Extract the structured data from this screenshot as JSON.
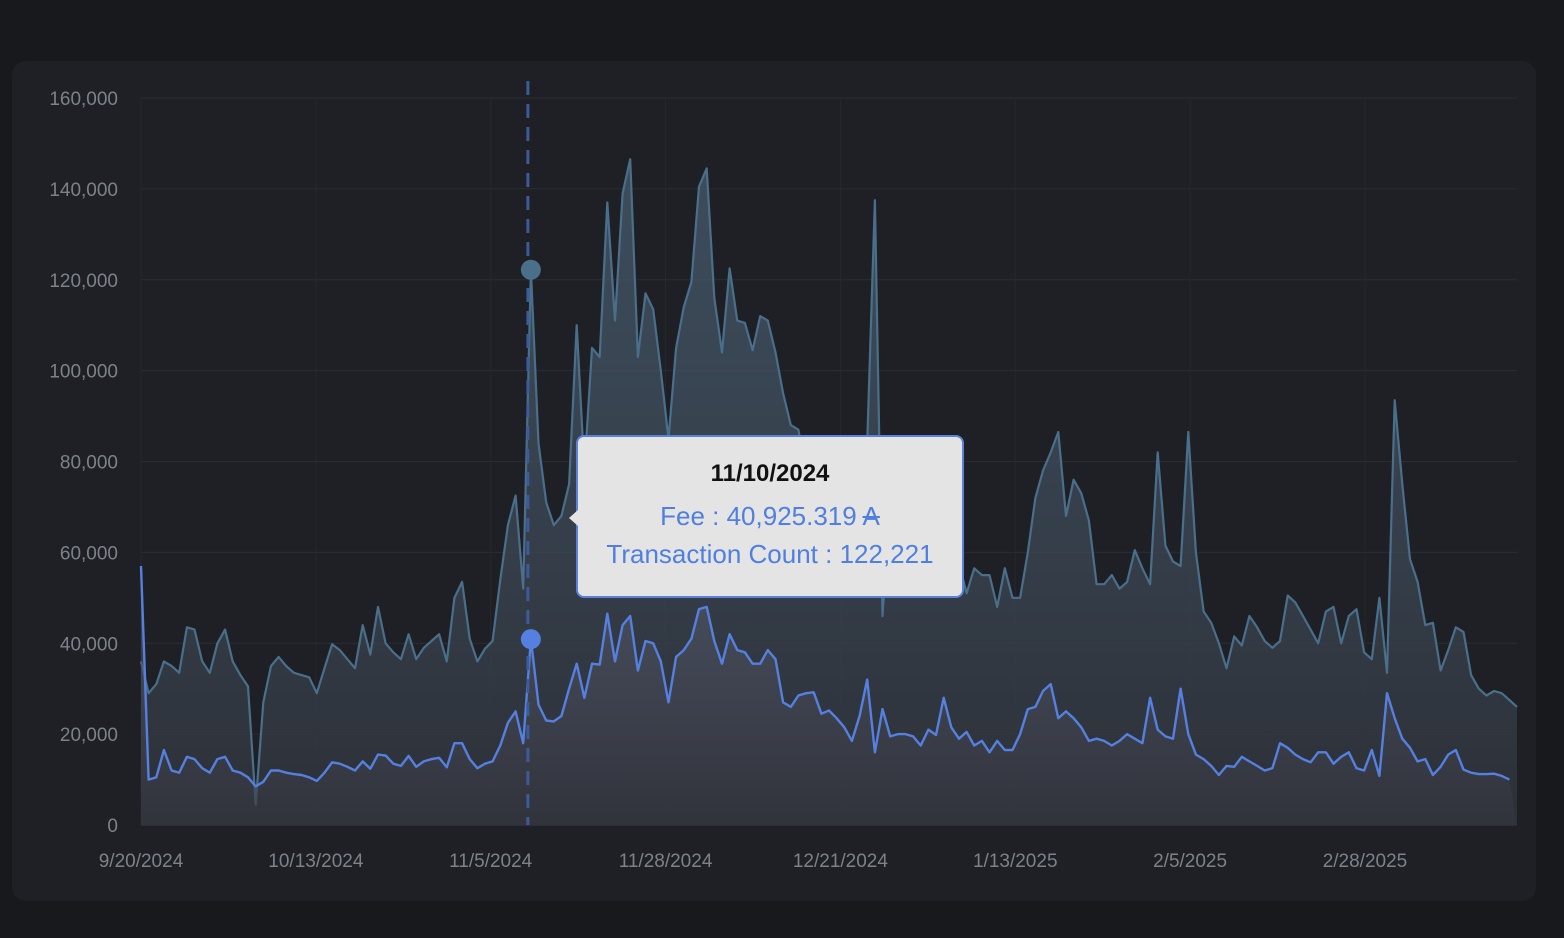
{
  "chart_data": {
    "type": "area",
    "x_start": "9/20/2024",
    "x_end": "3/20/2025",
    "x_ticks": [
      "9/20/2024",
      "10/13/2024",
      "11/5/2024",
      "11/28/2024",
      "12/21/2024",
      "1/13/2025",
      "2/5/2025",
      "2/28/2025"
    ],
    "y_ticks": [
      "0",
      "20,000",
      "40,000",
      "60,000",
      "80,000",
      "100,000",
      "120,000",
      "140,000",
      "160,000"
    ],
    "ylim": [
      0,
      160000
    ],
    "grid": true,
    "series": [
      {
        "name": "Transaction Count",
        "color": "#4a6f8a",
        "values": [
          36000,
          29000,
          31000,
          36000,
          35000,
          33500,
          43500,
          43000,
          36000,
          33500,
          40000,
          43000,
          36000,
          33000,
          30500,
          4500,
          27000,
          35000,
          37000,
          35000,
          33500,
          33000,
          32500,
          29000,
          34500,
          39800,
          38500,
          36500,
          34500,
          44000,
          37500,
          48000,
          40000,
          38000,
          36500,
          42000,
          36500,
          39000,
          40500,
          42000,
          36000,
          50000,
          53500,
          41000,
          36000,
          38800,
          40500,
          54000,
          66000,
          72500,
          52000,
          122200,
          84000,
          71000,
          66000,
          68000,
          75000,
          110000,
          78000,
          105000,
          103000,
          137000,
          111000,
          139000,
          146500,
          103000,
          117000,
          113500,
          100000,
          85000,
          105000,
          114000,
          119500,
          140500,
          144500,
          116000,
          104000,
          122500,
          111000,
          110500,
          104500,
          112000,
          111000,
          104000,
          95000,
          88000,
          87000,
          77000,
          72000,
          70000,
          66000,
          62000,
          60000,
          64000,
          59500,
          84000,
          137500,
          46000,
          72000,
          59000,
          60500,
          60000,
          58500,
          53000,
          64000,
          59500,
          66000,
          57500,
          51000,
          56500,
          55000,
          55000,
          48000,
          56500,
          50000,
          50000,
          60000,
          72000,
          78000,
          82000,
          86500,
          68000,
          76000,
          73000,
          67000,
          53000,
          53000,
          55000,
          52000,
          53500,
          60500,
          56500,
          53000,
          82000,
          61500,
          58000,
          57000,
          86500,
          60000,
          47000,
          44500,
          40000,
          34500,
          41500,
          39500,
          46000,
          43500,
          40500,
          39000,
          40500,
          50500,
          49000,
          46000,
          43000,
          40000,
          47000,
          48000,
          40000,
          46000,
          47500,
          38000,
          36500,
          50000,
          33500,
          93500,
          75000,
          58500,
          53500,
          44000,
          44500,
          34000,
          38500,
          43500,
          42500,
          33000,
          30000,
          28500,
          29500,
          29000,
          27500,
          26000
        ]
      },
      {
        "name": "Fee",
        "color": "#5580e0",
        "values": [
          57000,
          10000,
          10500,
          16500,
          12000,
          11500,
          15000,
          14500,
          12500,
          11500,
          14500,
          15000,
          12000,
          11500,
          10500,
          8500,
          9500,
          12000,
          12000,
          11500,
          11200,
          11000,
          10500,
          9700,
          11500,
          13800,
          13500,
          12800,
          12000,
          14000,
          12400,
          15500,
          15300,
          13500,
          13000,
          15200,
          12800,
          14000,
          14500,
          14800,
          12700,
          18000,
          18000,
          14500,
          12500,
          13500,
          14000,
          17500,
          22500,
          25000,
          18000,
          40900,
          26500,
          23000,
          22800,
          24000,
          30000,
          35500,
          28000,
          35500,
          35300,
          46500,
          36000,
          44000,
          46000,
          34000,
          40500,
          40000,
          36000,
          27000,
          37000,
          38500,
          41000,
          47500,
          48000,
          40500,
          35500,
          42000,
          38500,
          38000,
          35500,
          35500,
          38500,
          36500,
          27000,
          26000,
          28500,
          29000,
          29200,
          24500,
          25200,
          23500,
          21500,
          18500,
          24000,
          32000,
          16000,
          25500,
          19500,
          20000,
          20000,
          19500,
          17500,
          21000,
          19800,
          28000,
          21500,
          19000,
          20500,
          17500,
          18500,
          16000,
          18500,
          16500,
          16500,
          20000,
          25500,
          26000,
          29500,
          31000,
          23500,
          25000,
          23500,
          21500,
          18500,
          19000,
          18500,
          17500,
          18500,
          20000,
          19000,
          18000,
          28000,
          21000,
          19500,
          19000,
          30000,
          20000,
          15500,
          14500,
          13000,
          11000,
          13000,
          12800,
          15000,
          14000,
          13000,
          12000,
          12500,
          18000,
          17000,
          15500,
          14500,
          13800,
          16000,
          16000,
          13500,
          15000,
          16000,
          12500,
          12000,
          16500,
          10800,
          29000,
          23500,
          19000,
          17000,
          14000,
          14500,
          11000,
          12800,
          15500,
          16500,
          12200,
          11500,
          11200,
          11200,
          11300,
          10800,
          10000
        ]
      }
    ],
    "hover": {
      "x": "11/10/2024",
      "index": 51
    }
  },
  "tooltip": {
    "date": "11/10/2024",
    "fee_label": "Fee : 40,925.319",
    "fee_symbol": "A",
    "count_label": "Transaction Count : 122,221"
  }
}
